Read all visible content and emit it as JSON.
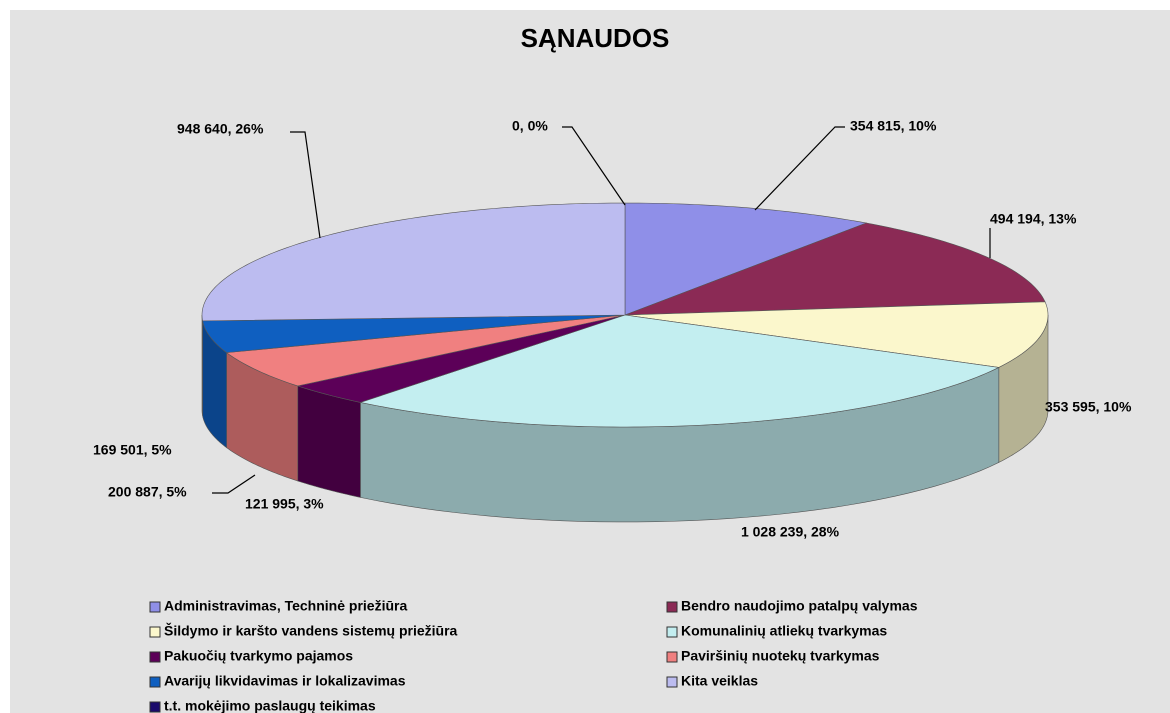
{
  "chart_data": {
    "type": "pie3d",
    "title": "SĄNAUDOS",
    "categories": [
      "Administravimas, Techninė priežiūra",
      "Bendro naudojimo patalpų valymas",
      "Šildymo ir karšto vandens sistemų priežiūra",
      "Komunalinių atliekų tvarkymas",
      "Pakuočių tvarkymo pajamos",
      "Paviršinių nuotekų tvarkymas",
      "Avarijų likvidavimas ir lokalizavimas",
      "Kita veiklas",
      "t.t. mokėjimo paslaugų teikimas"
    ],
    "values": [
      354815,
      494194,
      353595,
      1028239,
      121995,
      200887,
      169501,
      948640,
      0
    ],
    "value_labels": [
      "354 815, 10%",
      "494 194, 13%",
      "353 595, 10%",
      "1 028 239, 28%",
      "121 995, 3%",
      "200 887, 5%",
      "169 501, 5%",
      "948 640, 26%",
      "0, 0%"
    ],
    "colors": [
      "#8f8fe8",
      "#8b2a55",
      "#fbf7cc",
      "#c3eef0",
      "#5c0058",
      "#f08080",
      "#0f5fc0",
      "#bcbcf0",
      "#1a0a6b"
    ],
    "legend": "bottom"
  }
}
